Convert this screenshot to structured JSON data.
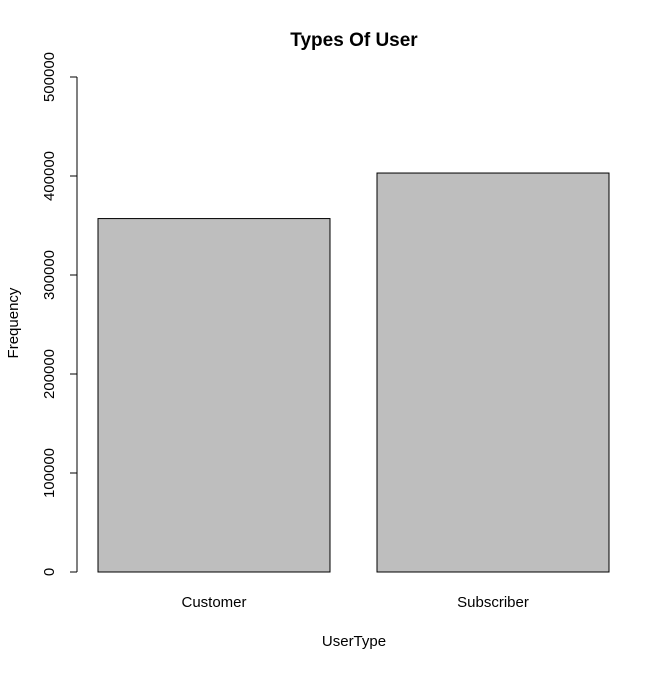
{
  "chart_data": {
    "type": "bar",
    "title": "Types Of User",
    "xlabel": "UserType",
    "ylabel": "Frequency",
    "categories": [
      "Customer",
      "Subscriber"
    ],
    "values": [
      357000,
      403000
    ],
    "ylim": [
      0,
      500000
    ],
    "yticks": [
      0,
      100000,
      200000,
      300000,
      400000,
      500000
    ],
    "ytick_labels": [
      "0",
      "100000",
      "200000",
      "300000",
      "400000",
      "500000"
    ],
    "bar_color": "#bebebe",
    "grid": false,
    "legend": "none"
  }
}
